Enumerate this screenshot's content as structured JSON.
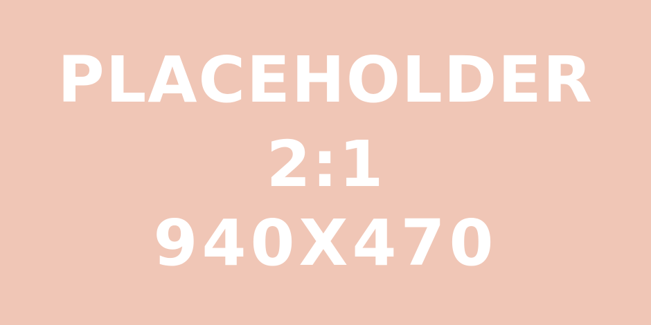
{
  "placeholder": {
    "line1": "PLACEHOLDER",
    "line2": "2:1",
    "line3": "940X470",
    "background_color": "#f0c6b6",
    "text_color": "#ffffff"
  }
}
